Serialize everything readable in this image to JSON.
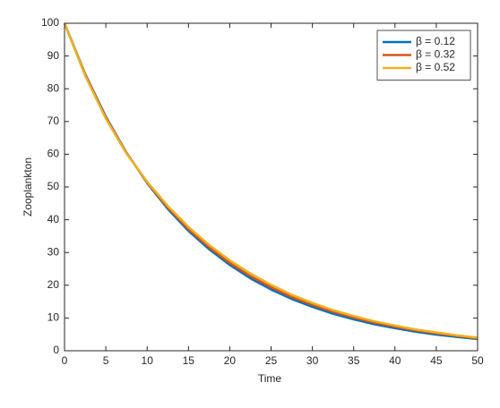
{
  "chart_data": {
    "type": "line",
    "xlabel": "Time",
    "ylabel": "Zooplankton",
    "x": [
      0,
      2.5,
      5,
      7.5,
      10,
      12.5,
      15,
      17.5,
      20,
      22.5,
      25,
      27.5,
      30,
      32.5,
      35,
      37.5,
      40,
      42.5,
      45,
      47.5,
      50
    ],
    "series": [
      {
        "name": "β = 0.12",
        "color": "#0072BD",
        "values": [
          100,
          84.5,
          71.5,
          60.5,
          51.2,
          43.3,
          36.6,
          31,
          26.2,
          22.1,
          18.7,
          15.8,
          13.4,
          11.3,
          9.6,
          8.1,
          6.9,
          5.8,
          4.9,
          4.2,
          3.6
        ]
      },
      {
        "name": "β = 0.32",
        "color": "#D95319",
        "values": [
          100,
          84.3,
          71.2,
          60.4,
          51.4,
          43.7,
          37.1,
          31.6,
          26.8,
          22.8,
          19.4,
          16.4,
          14,
          11.9,
          10.1,
          8.6,
          7.3,
          6.2,
          5.3,
          4.5,
          3.8
        ]
      },
      {
        "name": "β = 0.52",
        "color": "#EDB120",
        "values": [
          100,
          84,
          70.9,
          60.2,
          51.6,
          44.2,
          37.8,
          32.3,
          27.6,
          23.6,
          20.1,
          17.1,
          14.6,
          12.4,
          10.6,
          9,
          7.7,
          6.5,
          5.6,
          4.7,
          4
        ]
      }
    ],
    "xlim": [
      0,
      50
    ],
    "xticks": [
      0,
      5,
      10,
      15,
      20,
      25,
      30,
      35,
      40,
      45,
      50
    ],
    "ylim": [
      0,
      100
    ],
    "yticks": [
      0,
      10,
      20,
      30,
      40,
      50,
      60,
      70,
      80,
      90,
      100
    ],
    "grid": false,
    "legend": "northeast"
  }
}
